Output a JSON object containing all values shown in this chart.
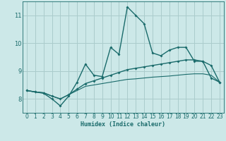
{
  "xlabel": "Humidex (Indice chaleur)",
  "background_color": "#cce8e8",
  "grid_color": "#aacccc",
  "line_color": "#1a6b6b",
  "xlim": [
    -0.5,
    23.5
  ],
  "ylim": [
    7.5,
    11.5
  ],
  "yticks": [
    8,
    9,
    10,
    11
  ],
  "xticks": [
    0,
    1,
    2,
    3,
    4,
    5,
    6,
    7,
    8,
    9,
    10,
    11,
    12,
    13,
    14,
    15,
    16,
    17,
    18,
    19,
    20,
    21,
    22,
    23
  ],
  "series": [
    [
      8.3,
      8.25,
      8.2,
      8.0,
      7.75,
      8.1,
      8.6,
      9.25,
      8.85,
      8.8,
      9.85,
      9.6,
      11.3,
      11.0,
      10.7,
      9.65,
      9.55,
      9.75,
      9.85,
      9.85,
      9.35,
      9.35,
      8.75,
      8.6
    ],
    [
      8.3,
      8.25,
      8.22,
      8.1,
      8.0,
      8.15,
      8.35,
      8.55,
      8.65,
      8.75,
      8.85,
      8.95,
      9.05,
      9.1,
      9.15,
      9.2,
      9.25,
      9.3,
      9.35,
      9.4,
      9.4,
      9.35,
      9.2,
      8.6
    ],
    [
      8.3,
      8.25,
      8.22,
      8.1,
      8.0,
      8.15,
      8.3,
      8.45,
      8.5,
      8.55,
      8.6,
      8.65,
      8.7,
      8.72,
      8.75,
      8.78,
      8.8,
      8.82,
      8.85,
      8.88,
      8.9,
      8.9,
      8.85,
      8.6
    ]
  ]
}
